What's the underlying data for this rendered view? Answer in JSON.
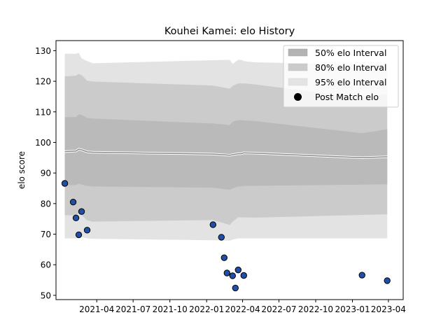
{
  "chart_data": {
    "type": "line",
    "title": "Kouhei Kamei: elo History",
    "xlabel": "",
    "ylabel": "elo score",
    "xlim": [
      "2020-12-20",
      "2023-05-08"
    ],
    "ylim": [
      48.6,
      133.3
    ],
    "x_ticks": [
      "2021-04",
      "2021-07",
      "2021-10",
      "2022-01",
      "2022-04",
      "2022-07",
      "2022-10",
      "2023-01",
      "2023-04"
    ],
    "y_ticks": [
      50,
      60,
      70,
      80,
      90,
      100,
      110,
      120,
      130
    ],
    "legend_position": "top-right",
    "legend": [
      {
        "label": "50% elo Interval",
        "color": "#b3b3b3"
      },
      {
        "label": "80% elo Interval",
        "color": "#cbcbcb"
      },
      {
        "label": "95% elo Interval",
        "color": "#e3e3e3"
      },
      {
        "label": "Post Match elo",
        "color": "#000000"
      }
    ],
    "band_dates": [
      "2021-01-11",
      "2021-02-08",
      "2021-02-15",
      "2021-02-22",
      "2021-03-08",
      "2021-03-22",
      "2022-01-17",
      "2022-02-28",
      "2022-03-07",
      "2022-03-21",
      "2022-03-28",
      "2022-04-04",
      "2022-05-01",
      "2023-01-25",
      "2023-03-29"
    ],
    "mean": [
      97.0,
      97.2,
      97.8,
      97.6,
      96.9,
      96.8,
      96.2,
      95.8,
      96.0,
      96.3,
      96.3,
      96.6,
      96.5,
      95.0,
      95.3
    ],
    "band_50_lower": [
      86.0,
      86.1,
      86.5,
      86.2,
      85.8,
      85.6,
      85.2,
      84.5,
      85.0,
      85.6,
      85.6,
      85.8,
      85.8,
      86.2,
      86.3
    ],
    "band_50_upper": [
      108.3,
      108.3,
      109.2,
      109.0,
      108.0,
      107.8,
      106.2,
      105.7,
      106.8,
      107.3,
      107.3,
      107.2,
      107.0,
      103.0,
      104.3
    ],
    "band_80_lower": [
      76.2,
      76.2,
      76.8,
      76.3,
      74.5,
      74.1,
      74.6,
      73.0,
      74.1,
      75.5,
      75.5,
      75.5,
      75.4,
      76.3,
      76.5
    ],
    "band_80_upper": [
      121.6,
      121.8,
      122.4,
      122.0,
      120.2,
      119.9,
      118.6,
      117.6,
      118.5,
      119.3,
      119.3,
      119.3,
      119.0,
      114.5,
      115.9
    ],
    "band_95_lower": [
      68.6,
      68.6,
      69.1,
      69.0,
      68.6,
      68.5,
      68.0,
      67.9,
      68.2,
      68.6,
      68.6,
      68.6,
      68.6,
      68.6,
      68.6
    ],
    "band_95_upper": [
      129.0,
      129.0,
      129.3,
      127.5,
      126.6,
      125.9,
      126.9,
      127.0,
      125.7,
      127.0,
      127.0,
      126.6,
      126.2,
      125.4,
      125.6
    ],
    "points": [
      {
        "date": "2021-01-11",
        "elo": 86.6
      },
      {
        "date": "2021-02-01",
        "elo": 80.5
      },
      {
        "date": "2021-02-08",
        "elo": 75.3
      },
      {
        "date": "2021-02-15",
        "elo": 69.8
      },
      {
        "date": "2021-02-22",
        "elo": 77.4
      },
      {
        "date": "2021-03-08",
        "elo": 71.3
      },
      {
        "date": "2022-01-17",
        "elo": 73.1
      },
      {
        "date": "2022-02-07",
        "elo": 69.0
      },
      {
        "date": "2022-02-14",
        "elo": 62.3
      },
      {
        "date": "2022-02-21",
        "elo": 57.3
      },
      {
        "date": "2022-03-07",
        "elo": 56.4
      },
      {
        "date": "2022-03-14",
        "elo": 52.4
      },
      {
        "date": "2022-03-21",
        "elo": 58.3
      },
      {
        "date": "2022-04-04",
        "elo": 56.5
      },
      {
        "date": "2023-01-25",
        "elo": 56.6
      },
      {
        "date": "2023-03-29",
        "elo": 54.8
      }
    ]
  }
}
